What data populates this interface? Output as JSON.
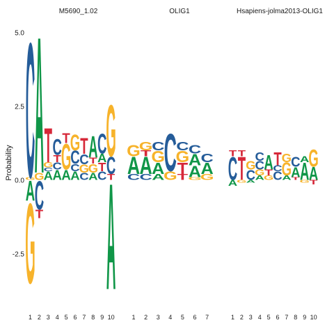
{
  "chart_data": {
    "type": "sequence-logo",
    "ylabel": "Probability",
    "y_ticks": [
      -2.5,
      0.0,
      2.5,
      5.0
    ],
    "y_tick_labels": [
      "-2.5",
      "0.0",
      "2.5",
      "5.0"
    ],
    "ylim": [
      -3.9,
      5.1
    ],
    "colors": {
      "A": "#109648",
      "C": "#255c99",
      "G": "#f7b32b",
      "T": "#d62839"
    },
    "panels": [
      {
        "title": "M5690_1.02",
        "positions": [
          {
            "pos": 1,
            "up": [
              {
                "l": "G",
                "h": 0.1
              },
              {
                "l": "C",
                "h": 4.7
              }
            ],
            "down": [
              {
                "l": "A",
                "h": 0.7
              },
              {
                "l": "G",
                "h": 2.8
              }
            ]
          },
          {
            "pos": 2,
            "up": [
              {
                "l": "G",
                "h": 0.25
              },
              {
                "l": "A",
                "h": 4.75
              }
            ],
            "down": [
              {
                "l": "C",
                "h": 1.0
              },
              {
                "l": "T",
                "h": 0.3
              }
            ]
          },
          {
            "pos": 3,
            "up": [
              {
                "l": "A",
                "h": 0.3
              },
              {
                "l": "C",
                "h": 0.12
              },
              {
                "l": "G",
                "h": 0.18
              },
              {
                "l": "T",
                "h": 1.2
              }
            ],
            "down": []
          },
          {
            "pos": 4,
            "up": [
              {
                "l": "A",
                "h": 0.35
              },
              {
                "l": "C",
                "h": 0.25
              },
              {
                "l": "T",
                "h": 0.25
              },
              {
                "l": "C",
                "h": 0.55
              }
            ],
            "down": []
          },
          {
            "pos": 5,
            "up": [
              {
                "l": "A",
                "h": 0.35
              },
              {
                "l": "G",
                "h": 0.9
              },
              {
                "l": "T",
                "h": 0.35
              }
            ],
            "down": []
          },
          {
            "pos": 6,
            "up": [
              {
                "l": "A",
                "h": 0.3
              },
              {
                "l": "C",
                "h": 0.25
              },
              {
                "l": "C",
                "h": 0.45
              },
              {
                "l": "G",
                "h": 0.55
              }
            ],
            "down": []
          },
          {
            "pos": 7,
            "up": [
              {
                "l": "C",
                "h": 0.25
              },
              {
                "l": "G",
                "h": 0.28
              },
              {
                "l": "C",
                "h": 0.35
              },
              {
                "l": "T",
                "h": 0.55
              }
            ],
            "down": []
          },
          {
            "pos": 8,
            "up": [
              {
                "l": "A",
                "h": 0.25
              },
              {
                "l": "G",
                "h": 0.3
              },
              {
                "l": "T",
                "h": 0.2
              },
              {
                "l": "A",
                "h": 0.75
              }
            ],
            "down": []
          },
          {
            "pos": 9,
            "up": [
              {
                "l": "C",
                "h": 0.3
              },
              {
                "l": "T",
                "h": 0.3
              },
              {
                "l": "A",
                "h": 0.3
              },
              {
                "l": "C",
                "h": 0.7
              }
            ],
            "down": []
          },
          {
            "pos": 10,
            "up": [
              {
                "l": "T",
                "h": 0.2
              },
              {
                "l": "C",
                "h": 0.6
              },
              {
                "l": "G",
                "h": 1.8
              }
            ],
            "down": [
              {
                "l": "A",
                "h": 3.7
              }
            ]
          }
        ]
      },
      {
        "title": "OLIG1",
        "positions": [
          {
            "pos": 1,
            "up": [
              {
                "l": "C",
                "h": 0.2
              },
              {
                "l": "A",
                "h": 0.6
              },
              {
                "l": "G",
                "h": 0.4
              }
            ],
            "down": []
          },
          {
            "pos": 2,
            "up": [
              {
                "l": "C",
                "h": 0.2
              },
              {
                "l": "A",
                "h": 0.6
              },
              {
                "l": "T",
                "h": 0.2
              },
              {
                "l": "G",
                "h": 0.3
              }
            ],
            "down": []
          },
          {
            "pos": 3,
            "up": [
              {
                "l": "A",
                "h": 0.2
              },
              {
                "l": "A",
                "h": 0.4
              },
              {
                "l": "G",
                "h": 0.4
              },
              {
                "l": "C",
                "h": 0.3
              }
            ],
            "down": []
          },
          {
            "pos": 4,
            "up": [
              {
                "l": "G",
                "h": 0.3
              },
              {
                "l": "C",
                "h": 1.3
              }
            ],
            "down": []
          },
          {
            "pos": 5,
            "up": [
              {
                "l": "T",
                "h": 0.2
              },
              {
                "l": "T",
                "h": 0.4
              },
              {
                "l": "G",
                "h": 0.4
              },
              {
                "l": "C",
                "h": 0.3
              }
            ],
            "down": []
          },
          {
            "pos": 6,
            "up": [
              {
                "l": "G",
                "h": 0.1
              },
              {
                "l": "A",
                "h": 0.4
              },
              {
                "l": "A",
                "h": 0.4
              },
              {
                "l": "C",
                "h": 0.3
              }
            ],
            "down": []
          },
          {
            "pos": 7,
            "up": [
              {
                "l": "G",
                "h": 0.2
              },
              {
                "l": "A",
                "h": 0.4
              },
              {
                "l": "C",
                "h": 0.3
              }
            ],
            "down": []
          }
        ]
      },
      {
        "title": "Hsapiens-jolma2013-OLIG1",
        "positions": [
          {
            "pos": 1,
            "up": [
              {
                "l": "C",
                "h": 0.8
              },
              {
                "l": "T",
                "h": 0.2
              }
            ],
            "down": [
              {
                "l": "A",
                "h": 0.2
              }
            ]
          },
          {
            "pos": 2,
            "up": [
              {
                "l": "T",
                "h": 0.8
              },
              {
                "l": "T",
                "h": 0.2
              }
            ],
            "down": [
              {
                "l": "G",
                "h": 0.1
              }
            ]
          },
          {
            "pos": 3,
            "up": [
              {
                "l": "C",
                "h": 0.35
              },
              {
                "l": "G",
                "h": 0.3
              }
            ],
            "down": [
              {
                "l": "A",
                "h": 0.1
              }
            ]
          },
          {
            "pos": 4,
            "up": [
              {
                "l": "A",
                "h": 0.15
              },
              {
                "l": "G",
                "h": 0.2
              },
              {
                "l": "C",
                "h": 0.3
              },
              {
                "l": "C",
                "h": 0.3
              }
            ],
            "down": []
          },
          {
            "pos": 5,
            "up": [
              {
                "l": "G",
                "h": 0.15
              },
              {
                "l": "T",
                "h": 0.2
              },
              {
                "l": "A",
                "h": 0.5
              }
            ],
            "down": []
          },
          {
            "pos": 6,
            "up": [
              {
                "l": "C",
                "h": 0.3
              },
              {
                "l": "C",
                "h": 0.2
              },
              {
                "l": "T",
                "h": 0.45
              }
            ],
            "down": []
          },
          {
            "pos": 7,
            "up": [
              {
                "l": "A",
                "h": 0.15
              },
              {
                "l": "G",
                "h": 0.45
              },
              {
                "l": "G",
                "h": 0.3
              }
            ],
            "down": []
          },
          {
            "pos": 8,
            "up": [
              {
                "l": "T",
                "h": 0.1
              },
              {
                "l": "A",
                "h": 0.35
              },
              {
                "l": "C",
                "h": 0.35
              }
            ],
            "down": []
          },
          {
            "pos": 9,
            "up": [
              {
                "l": "A",
                "h": 0.6
              },
              {
                "l": "A",
                "h": 0.2
              }
            ],
            "down": [
              {
                "l": "G",
                "h": 0.1
              }
            ]
          },
          {
            "pos": 10,
            "up": [
              {
                "l": "A",
                "h": 0.45
              },
              {
                "l": "G",
                "h": 0.6
              }
            ],
            "down": [
              {
                "l": "T",
                "h": 0.15
              }
            ]
          }
        ]
      }
    ]
  }
}
